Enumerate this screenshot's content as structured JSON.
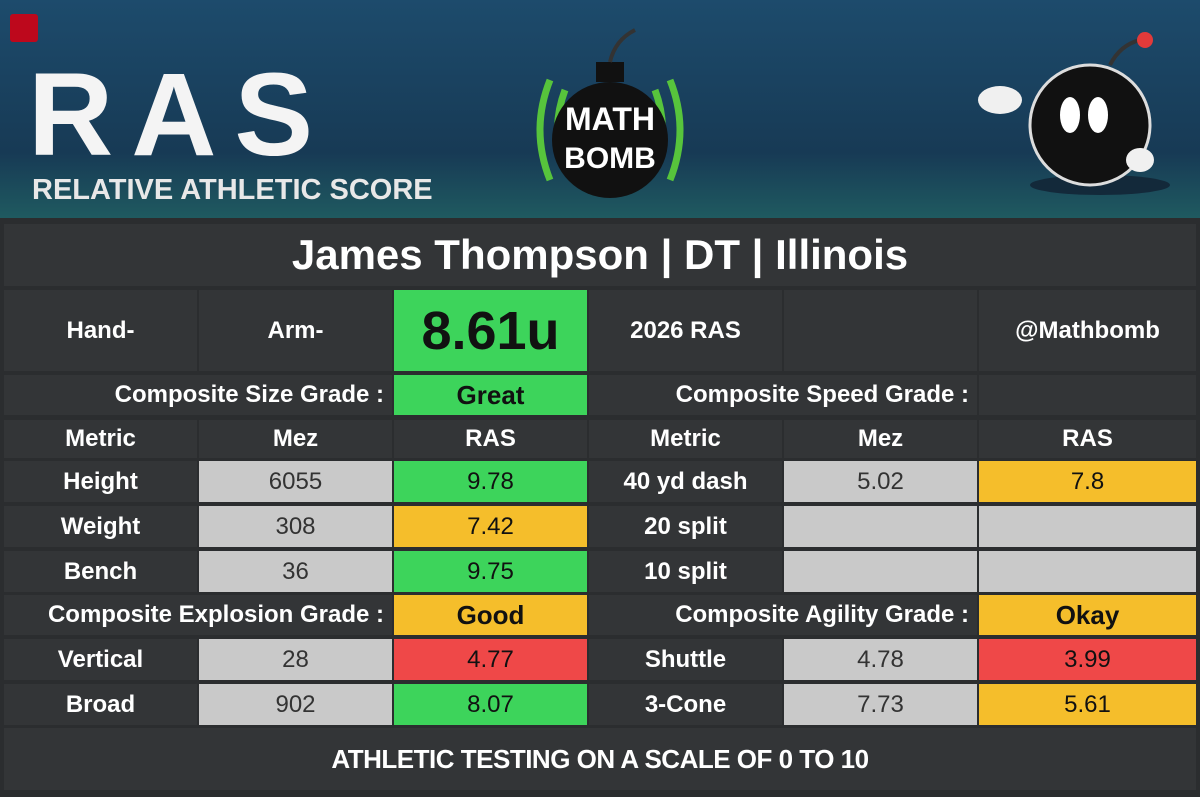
{
  "header": {
    "logo": "RAS",
    "logo_subtitle": "RELATIVE ATHLETIC SCORE",
    "brand_top": "MATH",
    "brand_bottom": "BOMB"
  },
  "title": "James Thompson | DT | Illinois",
  "top_row": {
    "hand": "Hand-",
    "arm": "Arm-",
    "score": "8.61u",
    "score_color": "#3dd45b",
    "season": "2026 RAS",
    "handle": "@Mathbomb"
  },
  "composites": {
    "size": {
      "label": "Composite Size Grade :",
      "grade": "Great",
      "color": "#3dd45b"
    },
    "speed": {
      "label": "Composite Speed Grade :"
    },
    "explosion": {
      "label": "Composite Explosion Grade :",
      "grade": "Good",
      "color": "#f5be2b"
    },
    "agility": {
      "label": "Composite Agility Grade :",
      "grade": "Okay",
      "color": "#f5be2b"
    }
  },
  "columns": [
    "Metric",
    "Mez",
    "RAS",
    "Metric",
    "Mez",
    "RAS"
  ],
  "left_rows": [
    {
      "metric": "Height",
      "mez": "6055",
      "ras": "9.78",
      "color": "#3dd45b"
    },
    {
      "metric": "Weight",
      "mez": "308",
      "ras": "7.42",
      "color": "#f5be2b"
    },
    {
      "metric": "Bench",
      "mez": "36",
      "ras": "9.75",
      "color": "#3dd45b"
    },
    {
      "metric": "Vertical",
      "mez": "28",
      "ras": "4.77",
      "color": "#ef4848"
    },
    {
      "metric": "Broad",
      "mez": "902",
      "ras": "8.07",
      "color": "#3dd45b"
    }
  ],
  "right_rows": [
    {
      "metric": "40 yd dash",
      "mez": "5.02",
      "ras": "7.8",
      "color": "#f5be2b"
    },
    {
      "metric": "20 split"
    },
    {
      "metric": "10 split"
    },
    {
      "metric": "Shuttle",
      "mez": "4.78",
      "ras": "3.99",
      "color": "#ef4848"
    },
    {
      "metric": "3-Cone",
      "mez": "7.73",
      "ras": "5.61",
      "color": "#f5be2b"
    }
  ],
  "footer": "ATHLETIC TESTING ON A SCALE OF 0 TO 10"
}
